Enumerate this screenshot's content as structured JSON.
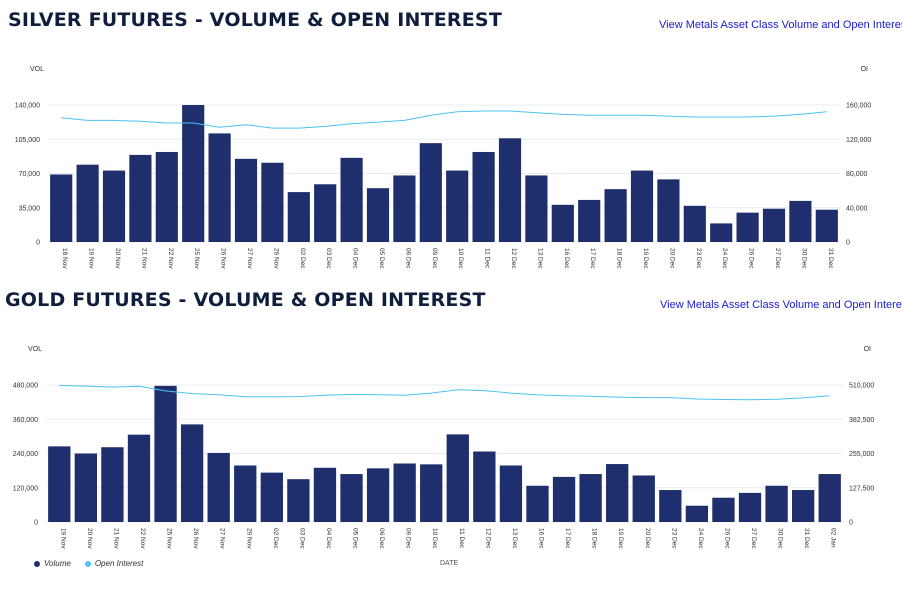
{
  "colors": {
    "volume": "#1f2f6e",
    "open_interest": "#4cc3f0",
    "title": "#0f1e3d",
    "link": "#1a1ad6"
  },
  "silver": {
    "title": "SILVER FUTURES - VOLUME & OPEN INTEREST",
    "link": "View Metals Asset Class Volume and Open Interest"
  },
  "gold": {
    "title": "GOLD FUTURES - VOLUME & OPEN INTEREST",
    "link": "View Metals Asset Class Volume and Open Interest"
  },
  "legend": {
    "volume": "Volume",
    "open_interest": "Open Interest",
    "x_title": "DATE"
  },
  "chart_data": [
    {
      "type": "bar",
      "title": "SILVER FUTURES - VOLUME & OPEN INTEREST",
      "ylabel": "VOL",
      "y2label": "OI",
      "ylim": [
        0,
        140000
      ],
      "y2lim": [
        0,
        160000
      ],
      "yticks": [
        "0",
        "35,000",
        "70,000",
        "105,000",
        "140,000"
      ],
      "y2ticks": [
        "0",
        "40,000",
        "80,000",
        "120,000",
        "160,000"
      ],
      "categories": [
        "18 Nov",
        "19 Nov",
        "20 Nov",
        "21 Nov",
        "22 Nov",
        "25 Nov",
        "26 Nov",
        "27 Nov",
        "29 Nov",
        "02 Dec",
        "03 Dec",
        "04 Dec",
        "05 Dec",
        "06 Dec",
        "09 Dec",
        "10 Dec",
        "11 Dec",
        "12 Dec",
        "13 Dec",
        "16 Dec",
        "17 Dec",
        "18 Dec",
        "19 Dec",
        "20 Dec",
        "23 Dec",
        "24 Dec",
        "26 Dec",
        "27 Dec",
        "30 Dec",
        "31 Dec"
      ],
      "series": [
        {
          "name": "Volume",
          "kind": "bar",
          "values": [
            69000,
            79000,
            73000,
            89000,
            92000,
            140000,
            111000,
            85000,
            81000,
            51000,
            59000,
            86000,
            55000,
            68000,
            101000,
            73000,
            92000,
            106000,
            68000,
            38000,
            43000,
            54000,
            73000,
            64000,
            37000,
            19000,
            30000,
            34000,
            42000,
            33000
          ]
        },
        {
          "name": "Open Interest",
          "kind": "line",
          "axis": "right",
          "values": [
            145000,
            142000,
            142000,
            141000,
            139000,
            139000,
            134000,
            137000,
            133000,
            133000,
            135000,
            138000,
            140000,
            142000,
            148000,
            152000,
            153000,
            153000,
            151000,
            149000,
            148000,
            148000,
            148000,
            147000,
            146000,
            146000,
            146000,
            147000,
            149000,
            152000
          ]
        }
      ]
    },
    {
      "type": "bar",
      "title": "GOLD FUTURES - VOLUME & OPEN INTEREST",
      "ylabel": "VOL",
      "y2label": "OI",
      "xlabel": "DATE",
      "ylim": [
        0,
        480000
      ],
      "y2lim": [
        0,
        510000
      ],
      "yticks": [
        "0",
        "120,000",
        "240,000",
        "360,000",
        "480,000"
      ],
      "y2ticks": [
        "0",
        "127,500",
        "255,000",
        "382,500",
        "510,000"
      ],
      "categories": [
        "19 Nov",
        "20 Nov",
        "21 Nov",
        "22 Nov",
        "25 Nov",
        "26 Nov",
        "27 Nov",
        "29 Nov",
        "02 Dec",
        "03 Dec",
        "04 Dec",
        "05 Dec",
        "06 Dec",
        "09 Dec",
        "10 Dec",
        "11 Dec",
        "12 Dec",
        "13 Dec",
        "16 Dec",
        "17 Dec",
        "18 Dec",
        "19 Dec",
        "20 Dec",
        "23 Dec",
        "24 Dec",
        "26 Dec",
        "27 Dec",
        "30 Dec",
        "31 Dec",
        "02 Jan"
      ],
      "series": [
        {
          "name": "Volume",
          "kind": "bar",
          "values": [
            265000,
            240000,
            262000,
            306000,
            477000,
            342000,
            242000,
            198000,
            173000,
            150000,
            190000,
            168000,
            188000,
            205000,
            202000,
            307000,
            247000,
            198000,
            127000,
            158000,
            168000,
            203000,
            163000,
            112000,
            57000,
            85000,
            102000,
            127000,
            112000,
            168000
          ]
        },
        {
          "name": "Open Interest",
          "kind": "line",
          "axis": "right",
          "values": [
            508000,
            506000,
            502000,
            505000,
            488000,
            478000,
            474000,
            466000,
            466000,
            467000,
            472000,
            475000,
            474000,
            472000,
            480000,
            492000,
            489000,
            480000,
            473000,
            470000,
            468000,
            465000,
            463000,
            463000,
            458000,
            456000,
            455000,
            457000,
            462000,
            470000
          ]
        }
      ]
    }
  ]
}
